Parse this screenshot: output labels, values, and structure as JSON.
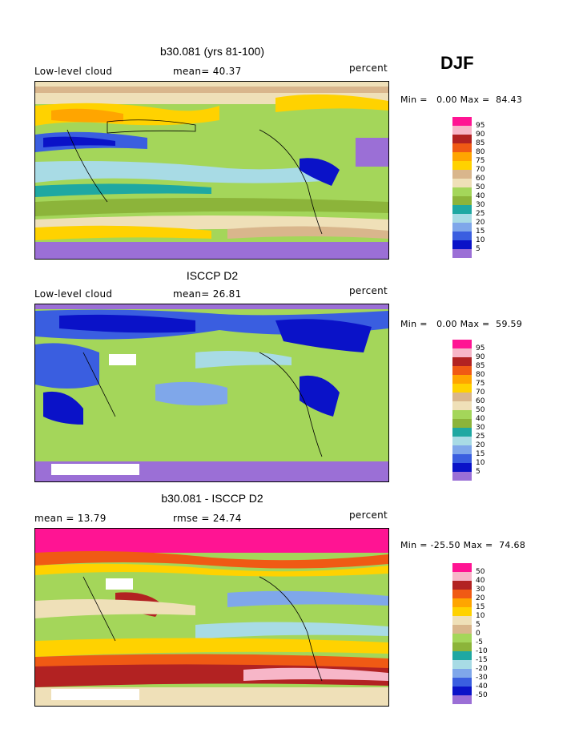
{
  "season": "DJF",
  "colors": {
    "purple": "#9b6fd6",
    "navy": "#0a12c8",
    "blue": "#3a5ee0",
    "lightblue": "#7fa7ea",
    "pale_cyan": "#a8dbe5",
    "teal": "#1fa8a2",
    "green": "#a4d65a",
    "olive": "#8cb43a",
    "cream": "#efe0b8",
    "tan": "#d9b68c",
    "yellow": "#ffd200",
    "orange": "#ffa500",
    "orange_red": "#f05a14",
    "dark_red": "#b22222",
    "pink": "#f7b6c8",
    "magenta": "#ff1493"
  },
  "panels": [
    {
      "title": "b30.081 (yrs 81-100)",
      "left_label": "Low-level cloud",
      "center_label": "mean=  40.37",
      "right_label": "percent",
      "minmax": "Min =   0.00 Max =  84.43",
      "legend": [
        "95",
        "90",
        "85",
        "80",
        "75",
        "70",
        "60",
        "50",
        "40",
        "30",
        "25",
        "20",
        "15",
        "10",
        "5"
      ],
      "legend_colors": [
        "magenta",
        "pink",
        "dark_red",
        "orange_red",
        "orange",
        "yellow",
        "tan",
        "cream",
        "green",
        "olive",
        "teal",
        "pale_cyan",
        "lightblue",
        "blue",
        "navy",
        "purple"
      ]
    },
    {
      "title": "ISCCP D2",
      "left_label": "Low-level cloud",
      "center_label": "mean=  26.81",
      "right_label": "percent",
      "minmax": "Min =   0.00 Max =  59.59",
      "legend": [
        "95",
        "90",
        "85",
        "80",
        "75",
        "70",
        "60",
        "50",
        "40",
        "30",
        "25",
        "20",
        "15",
        "10",
        "5"
      ],
      "legend_colors": [
        "magenta",
        "pink",
        "dark_red",
        "orange_red",
        "orange",
        "yellow",
        "tan",
        "cream",
        "green",
        "olive",
        "teal",
        "pale_cyan",
        "lightblue",
        "blue",
        "navy",
        "purple"
      ]
    },
    {
      "title": "b30.081 - ISCCP D2",
      "left_label": "mean =  13.79",
      "center_label": "rmse =  24.74",
      "right_label": "percent",
      "minmax": "Min = -25.50 Max =  74.68",
      "legend": [
        "50",
        "40",
        "30",
        "20",
        "15",
        "10",
        "5",
        "0",
        "-5",
        "-10",
        "-15",
        "-20",
        "-30",
        "-40",
        "-50"
      ],
      "legend_colors": [
        "magenta",
        "pink",
        "dark_red",
        "orange_red",
        "orange",
        "yellow",
        "cream",
        "tan",
        "green",
        "olive",
        "teal",
        "pale_cyan",
        "lightblue",
        "blue",
        "navy",
        "purple"
      ]
    }
  ],
  "chart_data": [
    {
      "type": "heatmap",
      "title": "b30.081 (yrs 81-100)",
      "variable": "Low-level cloud",
      "units": "percent",
      "mean": 40.37,
      "min": 0.0,
      "max": 84.43,
      "contour_levels": [
        5,
        10,
        15,
        20,
        25,
        30,
        40,
        50,
        60,
        70,
        75,
        80,
        85,
        90,
        95
      ]
    },
    {
      "type": "heatmap",
      "title": "ISCCP D2",
      "variable": "Low-level cloud",
      "units": "percent",
      "mean": 26.81,
      "min": 0.0,
      "max": 59.59,
      "contour_levels": [
        5,
        10,
        15,
        20,
        25,
        30,
        40,
        50,
        60,
        70,
        75,
        80,
        85,
        90,
        95
      ]
    },
    {
      "type": "heatmap",
      "title": "b30.081 - ISCCP D2",
      "units": "percent",
      "mean": 13.79,
      "rmse": 24.74,
      "min": -25.5,
      "max": 74.68,
      "contour_levels": [
        -50,
        -40,
        -30,
        -20,
        -15,
        -10,
        -5,
        0,
        5,
        10,
        15,
        20,
        30,
        40,
        50
      ]
    }
  ]
}
